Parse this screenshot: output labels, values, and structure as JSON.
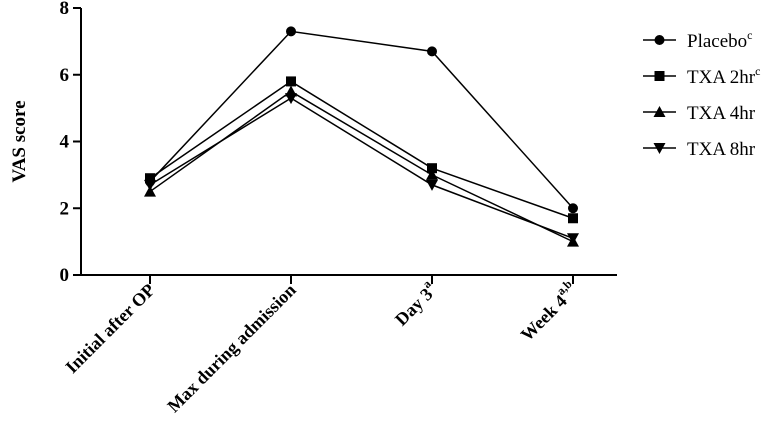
{
  "chart_data": {
    "type": "line",
    "ylabel": "VAS score",
    "ylim": [
      0,
      8
    ],
    "yticks": [
      "0",
      "2",
      "4",
      "6",
      "8"
    ],
    "categories": [
      {
        "label": "Initial after OP",
        "sup": ""
      },
      {
        "label": "Max during admission",
        "sup": ""
      },
      {
        "label": "Day 3",
        "sup": "a"
      },
      {
        "label": "Week 4",
        "sup": "a,b"
      }
    ],
    "series": [
      {
        "name": "Placebo",
        "sup": "c",
        "marker": "circle",
        "values": [
          2.8,
          7.3,
          6.7,
          2.0
        ]
      },
      {
        "name": "TXA 2hr",
        "sup": "c",
        "marker": "square",
        "values": [
          2.9,
          5.8,
          3.2,
          1.7
        ]
      },
      {
        "name": "TXA 4hr",
        "sup": "",
        "marker": "triangle-up",
        "values": [
          2.5,
          5.5,
          3.0,
          1.0
        ]
      },
      {
        "name": "TXA 8hr",
        "sup": "",
        "marker": "triangle-down",
        "values": [
          2.7,
          5.3,
          2.7,
          1.1
        ]
      }
    ],
    "legend": "right",
    "grid": false,
    "color": "#000000"
  }
}
